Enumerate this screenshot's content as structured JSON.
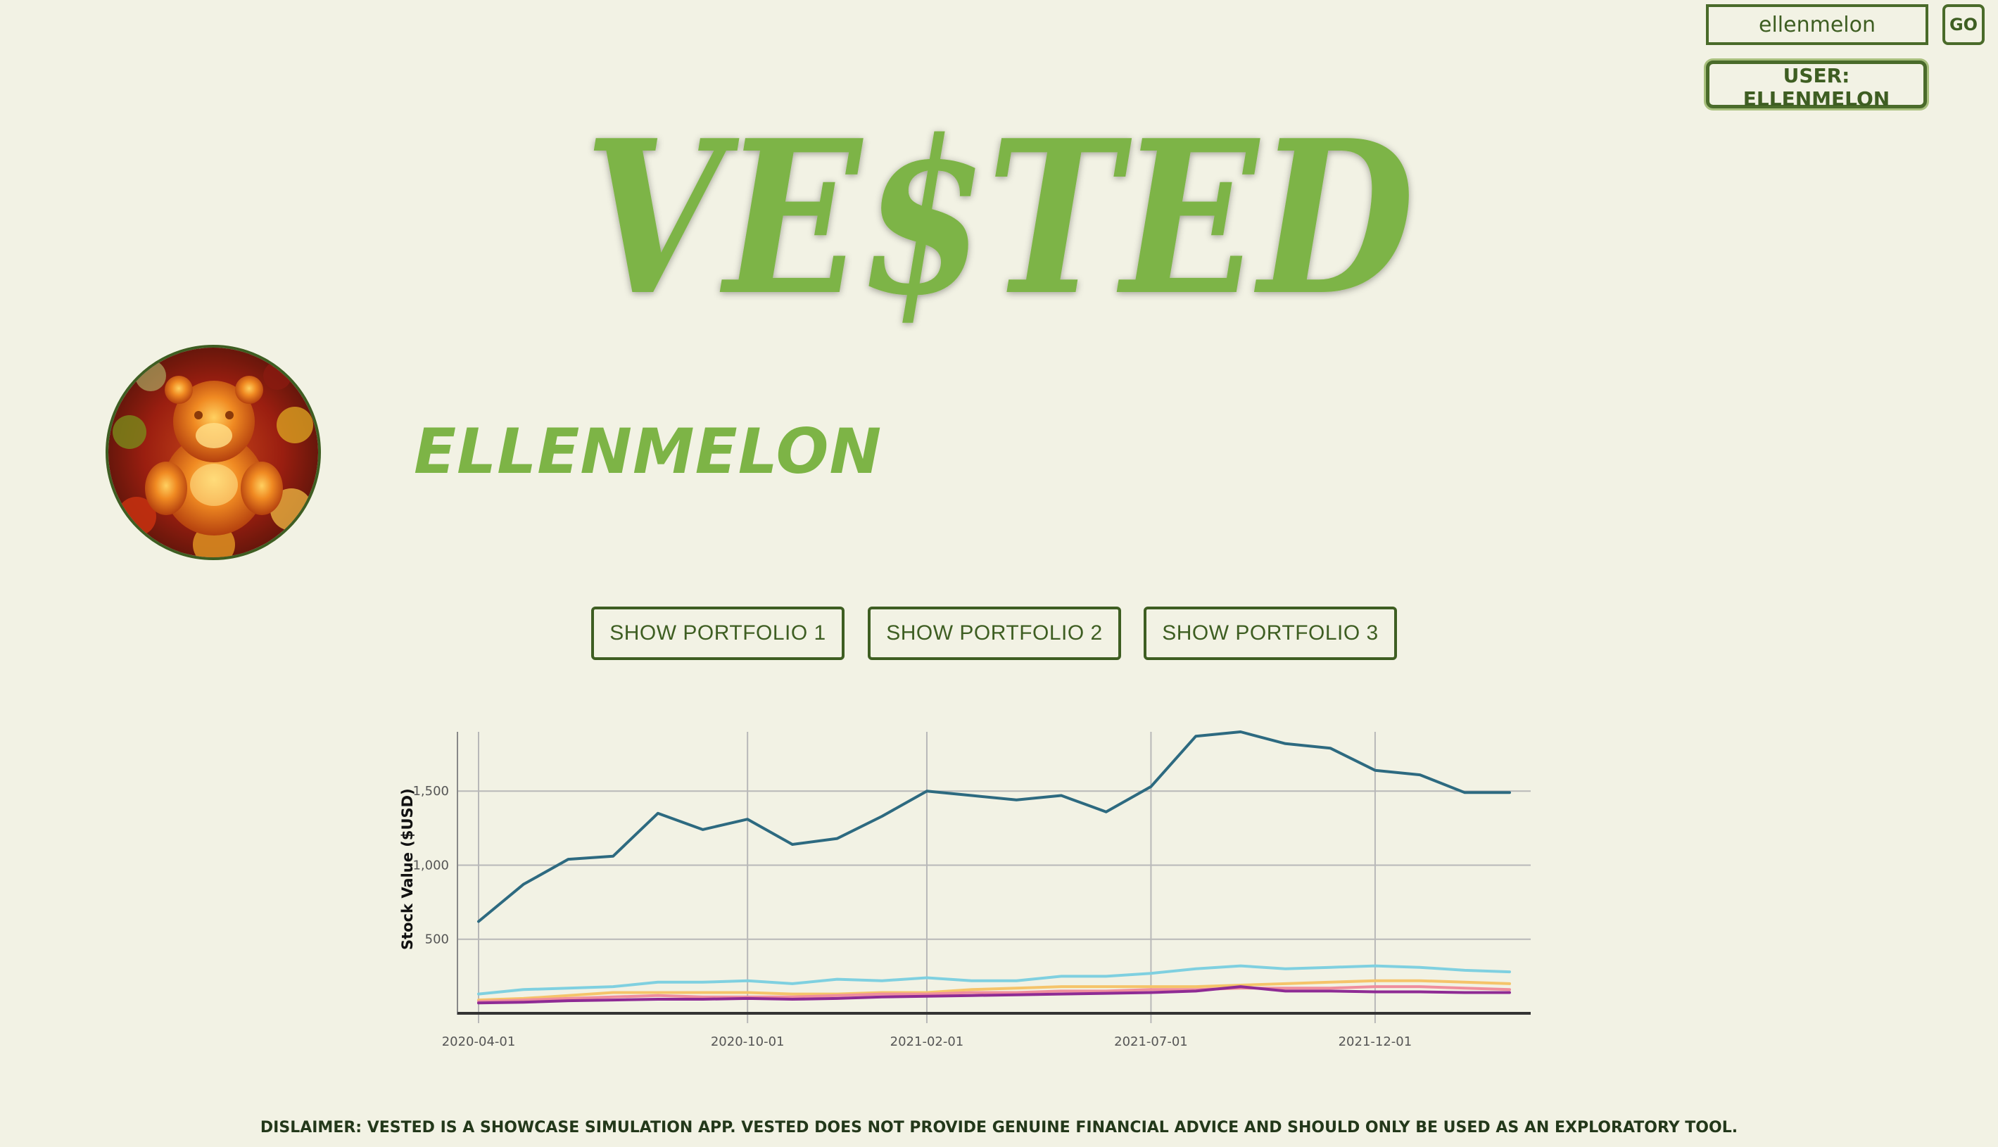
{
  "header": {
    "search_value": "ellenmelon",
    "go_label": "GO",
    "user_badge_label": "USER: ELLENMELON"
  },
  "logo": {
    "text": "VE$TED",
    "color": "#7db446"
  },
  "profile": {
    "username": "ELLENMELON",
    "accent_color": "#7db446"
  },
  "portfolio_buttons": [
    {
      "label": "SHOW PORTFOLIO 1"
    },
    {
      "label": "SHOW PORTFOLIO 2"
    },
    {
      "label": "SHOW PORTFOLIO 3"
    }
  ],
  "chart_data": {
    "type": "line",
    "ylabel": "Stock Value ($USD)",
    "xlabel": "",
    "title": "",
    "x": [
      "2020-04-01",
      "2020-05-01",
      "2020-06-01",
      "2020-07-01",
      "2020-08-01",
      "2020-09-01",
      "2020-10-01",
      "2020-11-01",
      "2020-12-01",
      "2021-01-01",
      "2021-02-01",
      "2021-03-01",
      "2021-04-01",
      "2021-05-01",
      "2021-06-01",
      "2021-07-01",
      "2021-08-01",
      "2021-09-01",
      "2021-10-01",
      "2021-11-01",
      "2021-12-01",
      "2022-01-01",
      "2022-02-01",
      "2022-03-01"
    ],
    "x_ticks": [
      "2020-04-01",
      "2020-10-01",
      "2021-02-01",
      "2021-07-01",
      "2021-12-01"
    ],
    "y_ticks": [
      "500",
      "1,000",
      "1,500"
    ],
    "y_tick_values": [
      500,
      1000,
      1500
    ],
    "ylim": [
      0,
      1900
    ],
    "grid": true,
    "series": [
      {
        "color": "#2d6a80",
        "values": [
          620,
          870,
          1040,
          1060,
          1350,
          1240,
          1310,
          1140,
          1180,
          1330,
          1500,
          1470,
          1440,
          1470,
          1360,
          1530,
          1870,
          1900,
          1820,
          1790,
          1640,
          1610,
          1490,
          1490
        ]
      },
      {
        "color": "#7fd0e0",
        "values": [
          130,
          160,
          170,
          180,
          210,
          210,
          220,
          200,
          230,
          220,
          240,
          220,
          220,
          250,
          250,
          270,
          300,
          320,
          300,
          310,
          320,
          310,
          290,
          280
        ]
      },
      {
        "color": "#f5c46a",
        "values": [
          90,
          100,
          120,
          140,
          140,
          140,
          140,
          130,
          130,
          140,
          140,
          160,
          170,
          180,
          180,
          180,
          180,
          190,
          200,
          210,
          220,
          220,
          210,
          200
        ]
      },
      {
        "color": "#ef8e9d",
        "values": [
          80,
          90,
          100,
          110,
          120,
          110,
          110,
          110,
          120,
          130,
          130,
          140,
          140,
          150,
          150,
          160,
          160,
          170,
          170,
          170,
          180,
          180,
          170,
          160
        ]
      },
      {
        "color": "#8e2b94",
        "values": [
          70,
          75,
          85,
          90,
          95,
          95,
          100,
          95,
          100,
          110,
          115,
          120,
          125,
          130,
          135,
          140,
          150,
          180,
          150,
          150,
          145,
          145,
          140,
          140
        ]
      }
    ]
  },
  "footer": {
    "disclaimer": "DISLAIMER: VESTED IS A SHOWCASE SIMULATION APP. VESTED DOES NOT PROVIDE GENUINE FINANCIAL ADVICE AND SHOULD ONLY BE USED AS AN EXPLORATORY TOOL."
  }
}
